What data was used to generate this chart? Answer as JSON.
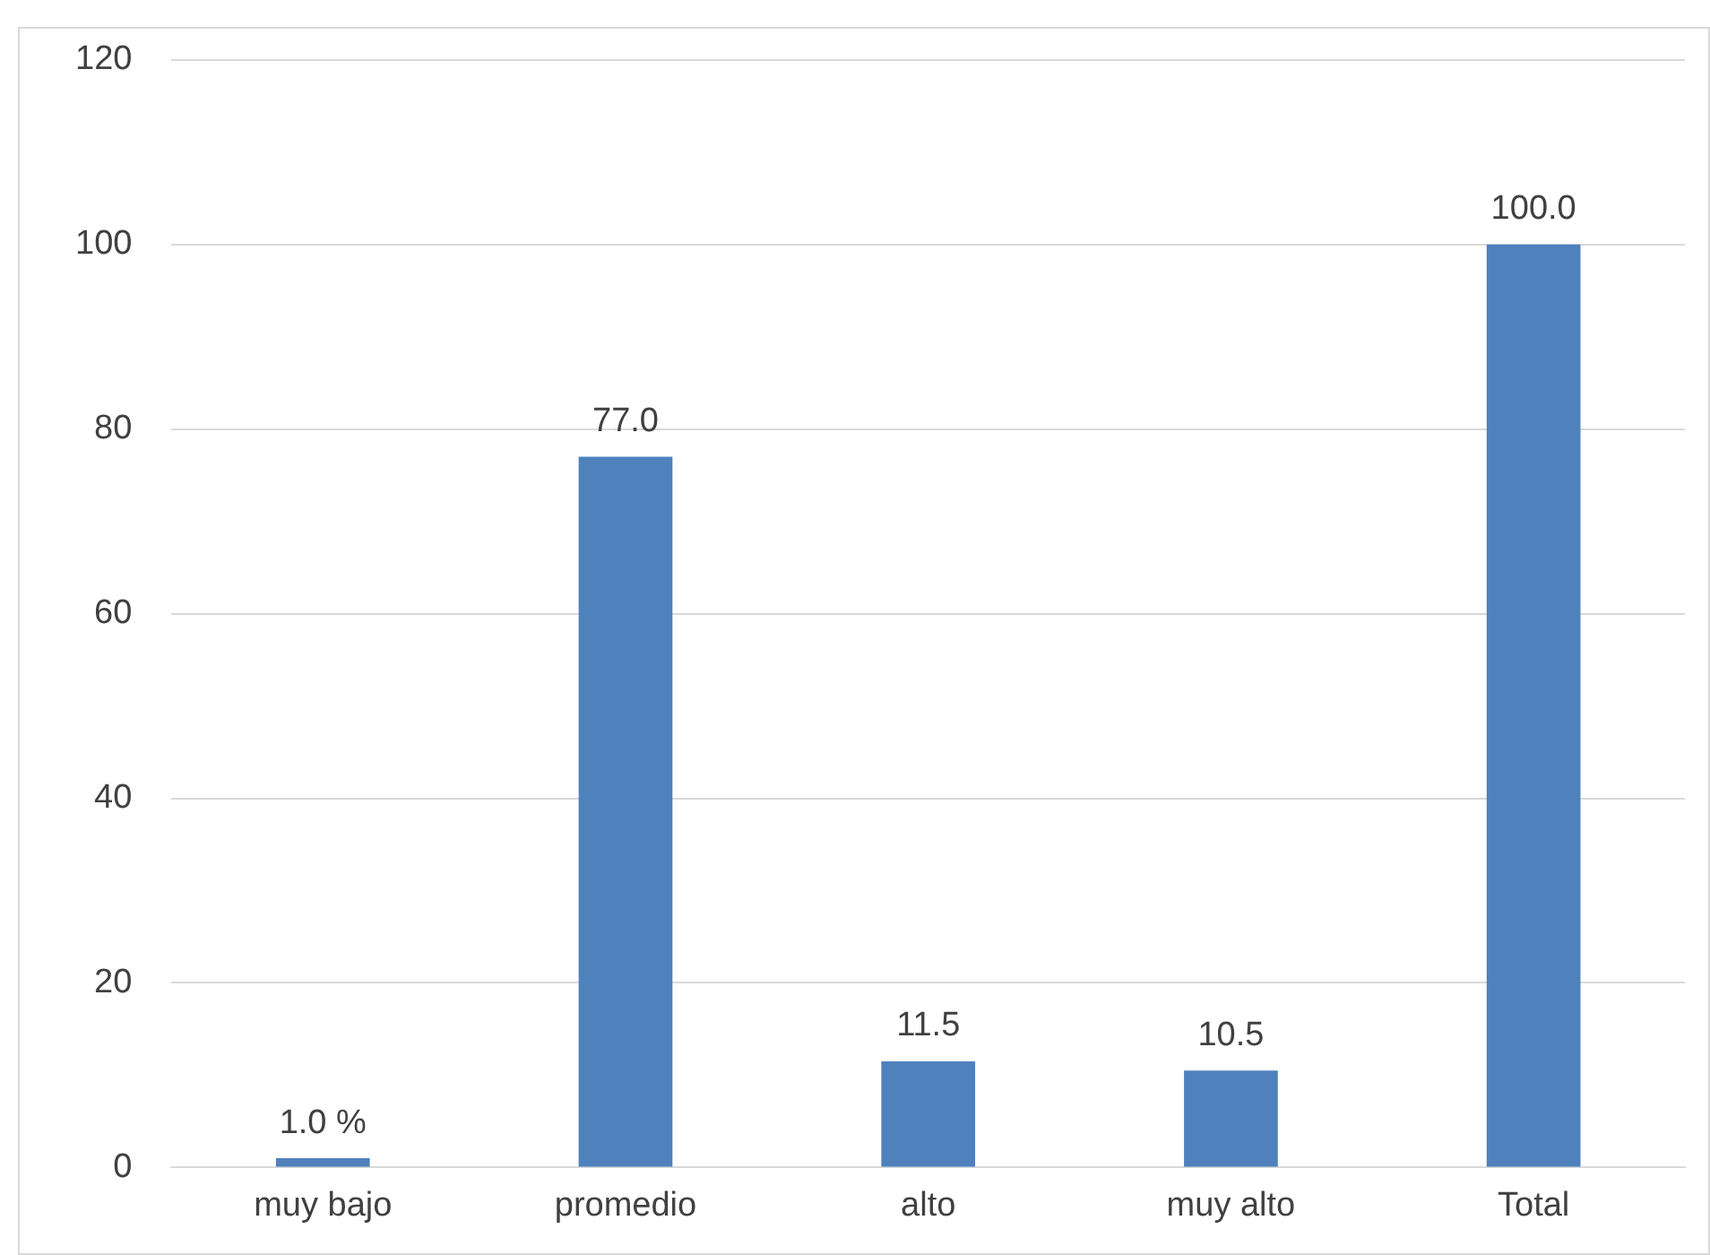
{
  "chart_data": {
    "type": "bar",
    "categories": [
      "muy bajo",
      "promedio",
      "alto",
      "muy alto",
      "Total"
    ],
    "values": [
      1.0,
      77.0,
      11.5,
      10.5,
      100.0
    ],
    "value_labels": [
      "1.0 %",
      "77.0",
      "11.5",
      "10.5",
      "100.0"
    ],
    "color": "#4f81bd",
    "ylim": [
      0,
      120
    ],
    "yticks": [
      0,
      20,
      40,
      60,
      80,
      100,
      120
    ],
    "grid": "y"
  }
}
